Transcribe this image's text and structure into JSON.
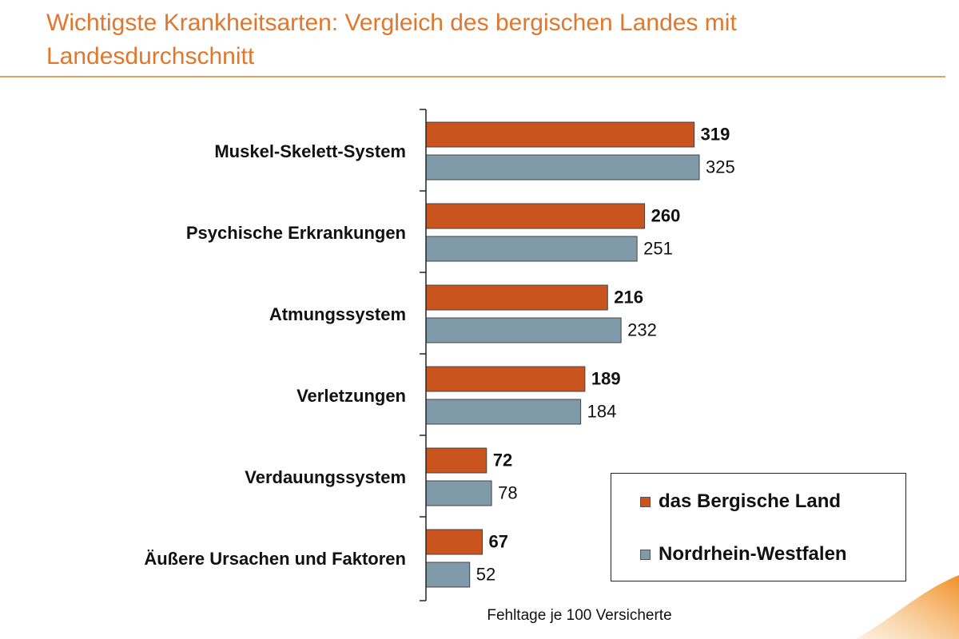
{
  "title": "Wichtigste Krankheitsarten: Vergleich des bergischen Landes mit Landesdurchschnitt",
  "colors": {
    "title": "#e0772c",
    "bergisch": "#c9541d",
    "nrw": "#7f9aa9",
    "axis": "#222222"
  },
  "chart_data": {
    "type": "bar",
    "orientation": "horizontal",
    "title": "Wichtigste Krankheitsarten: Vergleich des bergischen Landes mit Landesdurchschnitt",
    "xlabel": "Fehltage je 100 Versicherte",
    "ylabel": "",
    "xlim": [
      0,
      370
    ],
    "grid": false,
    "legend_position": "bottom-right",
    "categories": [
      "Muskel-Skelett-System",
      "Psychische Erkrankungen",
      "Atmungssystem",
      "Verletzungen",
      "Verdauungssystem",
      "Äußere Ursachen und Faktoren"
    ],
    "series": [
      {
        "name": "das Bergische Land",
        "values": [
          319,
          260,
          216,
          189,
          72,
          67
        ],
        "label_bold": true
      },
      {
        "name": "Nordrhein-Westfalen",
        "values": [
          325,
          251,
          232,
          184,
          78,
          52
        ],
        "label_bold": false
      }
    ]
  }
}
